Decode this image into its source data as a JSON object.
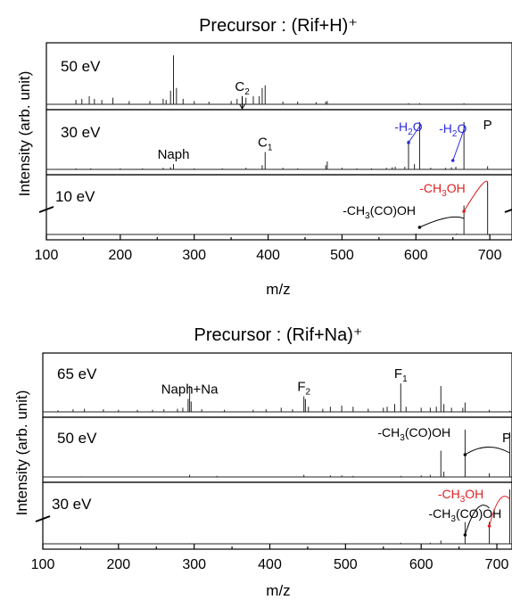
{
  "colors": {
    "blue": "#2b2be0",
    "red": "#e02020",
    "black": "#000000"
  },
  "chart_data": [
    {
      "type": "line",
      "title": "Precursor : (Rif+H)⁺",
      "xlabel": "m/z",
      "ylabel": "Intensity (arb. unit)",
      "xlim": [
        100,
        730
      ],
      "xticks": [
        100,
        200,
        300,
        400,
        500,
        600,
        700
      ],
      "ytick_labels": false,
      "axis_break": true,
      "panels": [
        {
          "label": "50 eV",
          "peaks": [
            [
              140,
              0.08
            ],
            [
              148,
              0.1
            ],
            [
              158,
              0.15
            ],
            [
              165,
              0.1
            ],
            [
              175,
              0.08
            ],
            [
              190,
              0.12
            ],
            [
              212,
              0.06
            ],
            [
              240,
              0.06
            ],
            [
              258,
              0.1
            ],
            [
              262,
              0.08
            ],
            [
              268,
              0.25
            ],
            [
              272,
              0.9
            ],
            [
              276,
              0.3
            ],
            [
              285,
              0.1
            ],
            [
              300,
              0.06
            ],
            [
              320,
              0.05
            ],
            [
              350,
              0.06
            ],
            [
              358,
              0.1
            ],
            [
              365,
              0.15
            ],
            [
              370,
              0.12
            ],
            [
              380,
              0.15
            ],
            [
              388,
              0.15
            ],
            [
              392,
              0.3
            ],
            [
              396,
              0.35
            ],
            [
              420,
              0.05
            ],
            [
              440,
              0.05
            ],
            [
              465,
              0.04
            ],
            [
              478,
              0.05
            ],
            [
              480,
              0.06
            ],
            [
              590,
              0.02
            ],
            [
              605,
              0.02
            ],
            [
              665,
              0.02
            ]
          ],
          "annotations": [
            {
              "text": "C",
              "sub": "2",
              "x": 365,
              "arrow": true
            }
          ]
        },
        {
          "label": "30 eV",
          "peaks": [
            [
              140,
              0.02
            ],
            [
              160,
              0.02
            ],
            [
              200,
              0.02
            ],
            [
              230,
              0.02
            ],
            [
              258,
              0.03
            ],
            [
              268,
              0.04
            ],
            [
              272,
              0.1
            ],
            [
              300,
              0.02
            ],
            [
              338,
              0.02
            ],
            [
              370,
              0.03
            ],
            [
              392,
              0.08
            ],
            [
              396,
              0.33
            ],
            [
              420,
              0.03
            ],
            [
              440,
              0.02
            ],
            [
              478,
              0.08
            ],
            [
              480,
              0.15
            ],
            [
              500,
              0.03
            ],
            [
              520,
              0.02
            ],
            [
              540,
              0.02
            ],
            [
              560,
              0.03
            ],
            [
              568,
              0.04
            ],
            [
              572,
              0.05
            ],
            [
              585,
              0.05
            ],
            [
              590,
              0.55
            ],
            [
              598,
              0.1
            ],
            [
              605,
              0.9
            ],
            [
              620,
              0.03
            ],
            [
              640,
              0.03
            ],
            [
              648,
              0.04
            ],
            [
              654,
              0.05
            ],
            [
              665,
              0.9
            ],
            [
              697,
              0.06
            ]
          ],
          "annotations": [
            {
              "text": "Naph",
              "x": 272
            },
            {
              "text": "C",
              "sub": "1",
              "x": 396
            },
            {
              "text": "-H",
              "sub": "2",
              "tail": "O",
              "x": 590,
              "color": "blue"
            },
            {
              "text": "-H",
              "sub": "2",
              "tail": "O",
              "x": 650,
              "color": "blue"
            },
            {
              "text": "P",
              "x": 697
            }
          ]
        },
        {
          "label": "10 eV",
          "peaks": [
            [
              300,
              0.01
            ],
            [
              600,
              0.02
            ],
            [
              655,
              0.02
            ],
            [
              665,
              0.55
            ],
            [
              697,
              1.0
            ]
          ],
          "annotations": [
            {
              "text": "-CH",
              "sub": "3",
              "tail": "OH",
              "x": 660,
              "color": "red"
            },
            {
              "text": "-CH",
              "sub": "3",
              "tail": "(CO)OH",
              "x": 560
            }
          ]
        }
      ]
    },
    {
      "type": "line",
      "title": "Precursor : (Rif+Na)⁺",
      "xlabel": "m/z",
      "ylabel": "Intensity (arb. unit)",
      "xlim": [
        100,
        720
      ],
      "xticks": [
        100,
        200,
        300,
        400,
        500,
        600,
        700
      ],
      "ytick_labels": false,
      "axis_break": true,
      "panels": [
        {
          "label": "65 eV",
          "peaks": [
            [
              120,
              0.03
            ],
            [
              140,
              0.05
            ],
            [
              155,
              0.06
            ],
            [
              180,
              0.05
            ],
            [
              200,
              0.04
            ],
            [
              225,
              0.04
            ],
            [
              245,
              0.04
            ],
            [
              260,
              0.05
            ],
            [
              278,
              0.06
            ],
            [
              285,
              0.08
            ],
            [
              292,
              0.25
            ],
            [
              294,
              0.5
            ],
            [
              296,
              0.2
            ],
            [
              310,
              0.05
            ],
            [
              340,
              0.04
            ],
            [
              378,
              0.04
            ],
            [
              395,
              0.05
            ],
            [
              415,
              0.08
            ],
            [
              430,
              0.05
            ],
            [
              445,
              0.3
            ],
            [
              447,
              0.25
            ],
            [
              451,
              0.1
            ],
            [
              470,
              0.06
            ],
            [
              480,
              0.1
            ],
            [
              495,
              0.12
            ],
            [
              510,
              0.1
            ],
            [
              530,
              0.06
            ],
            [
              550,
              0.08
            ],
            [
              555,
              0.1
            ],
            [
              565,
              0.15
            ],
            [
              573,
              0.55
            ],
            [
              580,
              0.1
            ],
            [
              600,
              0.08
            ],
            [
              612,
              0.08
            ],
            [
              620,
              0.1
            ],
            [
              626,
              0.5
            ],
            [
              630,
              0.15
            ],
            [
              640,
              0.08
            ],
            [
              655,
              0.08
            ],
            [
              658,
              0.18
            ],
            [
              690,
              0.04
            ],
            [
              717,
              0.02
            ]
          ],
          "annotations": [
            {
              "text": "Naph+Na",
              "x": 294
            },
            {
              "text": "F",
              "sub": "2",
              "x": 445
            },
            {
              "text": "F",
              "sub": "1",
              "x": 573
            }
          ]
        },
        {
          "label": "50 eV",
          "peaks": [
            [
              150,
              0.01
            ],
            [
              200,
              0.01
            ],
            [
              294,
              0.04
            ],
            [
              330,
              0.02
            ],
            [
              445,
              0.04
            ],
            [
              480,
              0.03
            ],
            [
              495,
              0.03
            ],
            [
              510,
              0.02
            ],
            [
              573,
              0.02
            ],
            [
              600,
              0.03
            ],
            [
              612,
              0.04
            ],
            [
              626,
              0.5
            ],
            [
              630,
              0.1
            ],
            [
              658,
              0.9
            ],
            [
              690,
              0.07
            ],
            [
              717,
              0.85
            ]
          ],
          "annotations": [
            {
              "text": "-CH",
              "sub": "3",
              "tail": "(CO)OH",
              "x": 626
            },
            {
              "text": "P",
              "x": 720
            }
          ]
        },
        {
          "label": "30 eV",
          "peaks": [
            [
              294,
              0.01
            ],
            [
              500,
              0.01
            ],
            [
              573,
              0.02
            ],
            [
              612,
              0.02
            ],
            [
              626,
              0.06
            ],
            [
              658,
              0.4
            ],
            [
              690,
              0.4
            ],
            [
              717,
              1.0
            ]
          ],
          "annotations": [
            {
              "text": "-CH",
              "sub": "3",
              "tail": "OH",
              "x": 690,
              "color": "red"
            },
            {
              "text": "-CH",
              "sub": "3",
              "tail": "(CO)OH",
              "x": 658
            }
          ]
        }
      ]
    }
  ]
}
